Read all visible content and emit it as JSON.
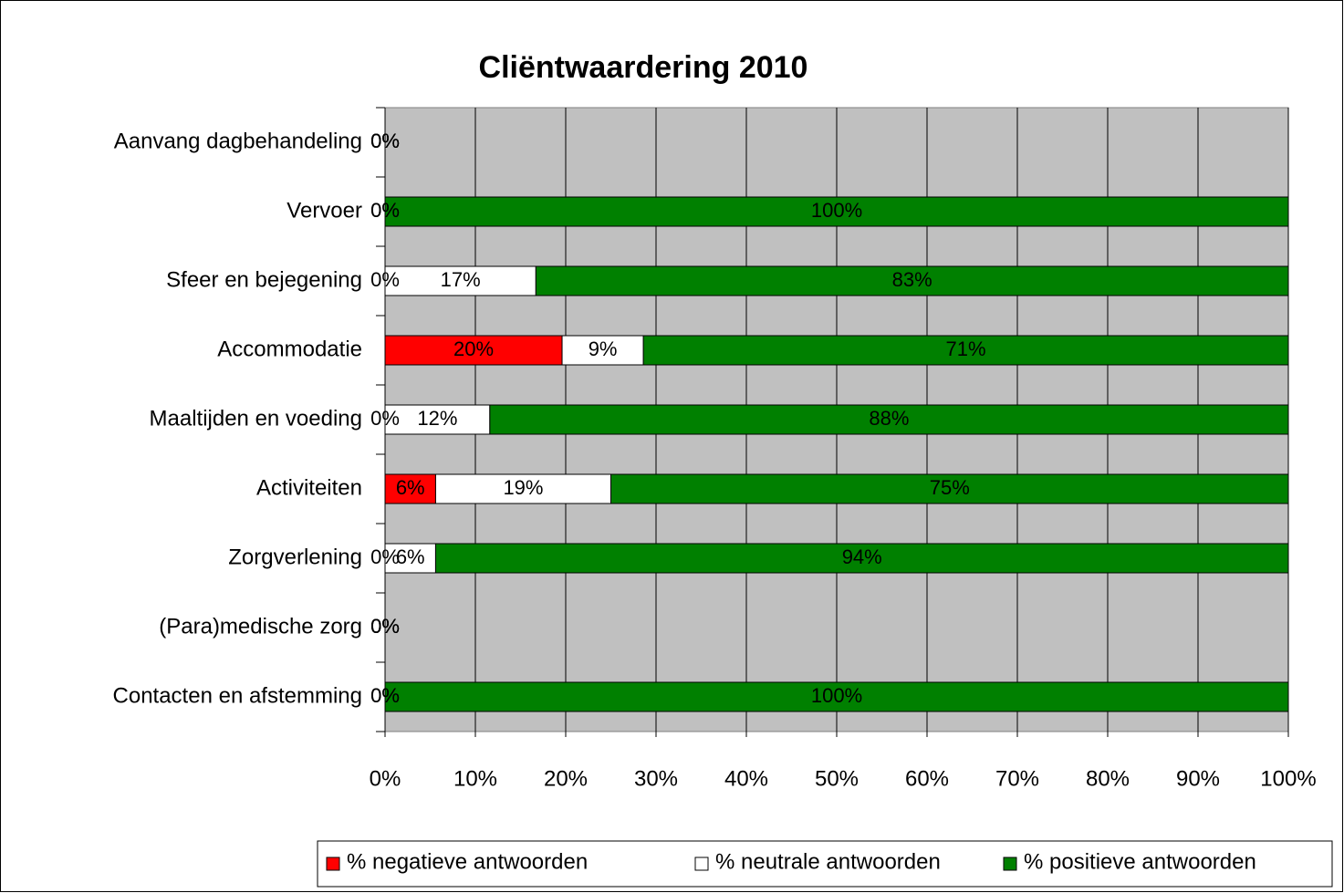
{
  "chart_data": {
    "type": "stacked_barh",
    "title": "Cliëntwaardering 2010",
    "categories": [
      "Aanvang dagbehandeling",
      "Vervoer",
      "Sfeer en bejegening",
      "Accommodatie",
      "Maaltijden en voeding",
      "Activiteiten",
      "Zorgverlening",
      "(Para)medische zorg",
      "Contacten en afstemming"
    ],
    "series": [
      {
        "name": "% negatieve antwoorden",
        "color": "#ff0000",
        "values": [
          0,
          0,
          0,
          19.6,
          0,
          5.6,
          0,
          0,
          0
        ],
        "value_labels": [
          "0%",
          "0%",
          "0%",
          "20%",
          "0%",
          "6%",
          "0%",
          "0%",
          "0%"
        ]
      },
      {
        "name": "% neutrale antwoorden",
        "color": "#ffffff",
        "values": [
          0,
          0,
          16.7,
          9.0,
          11.6,
          19.4,
          5.6,
          0,
          0
        ],
        "value_labels": [
          "0%",
          "0%",
          "17%",
          "9%",
          "12%",
          "19%",
          "6%",
          "0%",
          "0%"
        ]
      },
      {
        "name": "% positieve antwoorden",
        "color": "#008000",
        "values": [
          0,
          100,
          83.3,
          71.4,
          88.4,
          75.0,
          94.4,
          0,
          100
        ],
        "value_labels": [
          "0%",
          "100%",
          "83%",
          "71%",
          "88%",
          "75%",
          "94%",
          "0%",
          "100%"
        ]
      }
    ],
    "xlim": [
      0,
      100
    ],
    "xticks": [
      {
        "value": 0,
        "label": "0%"
      },
      {
        "value": 10,
        "label": "10%"
      },
      {
        "value": 20,
        "label": "20%"
      },
      {
        "value": 30,
        "label": "30%"
      },
      {
        "value": 40,
        "label": "40%"
      },
      {
        "value": 50,
        "label": "50%"
      },
      {
        "value": 60,
        "label": "60%"
      },
      {
        "value": 70,
        "label": "70%"
      },
      {
        "value": 80,
        "label": "80%"
      },
      {
        "value": 90,
        "label": "90%"
      },
      {
        "value": 100,
        "label": "100%"
      }
    ],
    "grid": true,
    "legend": "bottom"
  }
}
